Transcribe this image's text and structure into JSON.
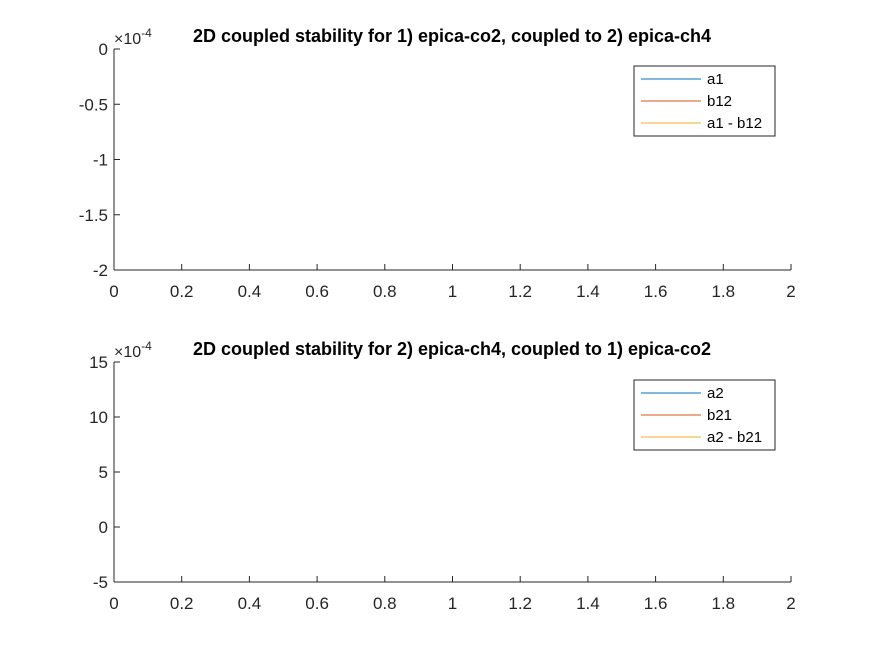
{
  "figure": {
    "background": "#ffffff",
    "axis_color": "#262626",
    "legend_border": "#262626"
  },
  "chart_data": [
    {
      "type": "line",
      "title": "2D coupled stability for 1) epica-co2, coupled to 2) epica-ch4",
      "xlabel": "",
      "ylabel": "",
      "xlim": [
        0,
        2
      ],
      "ylim": [
        -2,
        0
      ],
      "x_ticks": [
        "0",
        "0.2",
        "0.4",
        "0.6",
        "0.8",
        "1",
        "1.2",
        "1.4",
        "1.6",
        "1.8",
        "2"
      ],
      "y_ticks": [
        "0",
        "-0.5",
        "-1",
        "-1.5",
        "-2"
      ],
      "y_exponent_base": "×10",
      "y_exponent_power": "-4",
      "grid": false,
      "legend_position": "top-right",
      "series": [
        {
          "name": "a1",
          "color": "#0072BD",
          "x": [],
          "y": []
        },
        {
          "name": "b12",
          "color": "#D95319",
          "x": [],
          "y": []
        },
        {
          "name": "a1 - b12",
          "color": "#EDB120",
          "x": [],
          "y": []
        }
      ]
    },
    {
      "type": "line",
      "title": "2D coupled stability for 2) epica-ch4, coupled to 1) epica-co2",
      "xlabel": "",
      "ylabel": "",
      "xlim": [
        0,
        2
      ],
      "ylim": [
        -5,
        15
      ],
      "x_ticks": [
        "0",
        "0.2",
        "0.4",
        "0.6",
        "0.8",
        "1",
        "1.2",
        "1.4",
        "1.6",
        "1.8",
        "2"
      ],
      "y_ticks": [
        "15",
        "10",
        "5",
        "0",
        "-5"
      ],
      "y_exponent_base": "×10",
      "y_exponent_power": "-4",
      "grid": false,
      "legend_position": "top-right",
      "series": [
        {
          "name": "a2",
          "color": "#0072BD",
          "x": [],
          "y": []
        },
        {
          "name": "b21",
          "color": "#D95319",
          "x": [],
          "y": []
        },
        {
          "name": "a2 - b21",
          "color": "#EDB120",
          "x": [],
          "y": []
        }
      ]
    }
  ]
}
